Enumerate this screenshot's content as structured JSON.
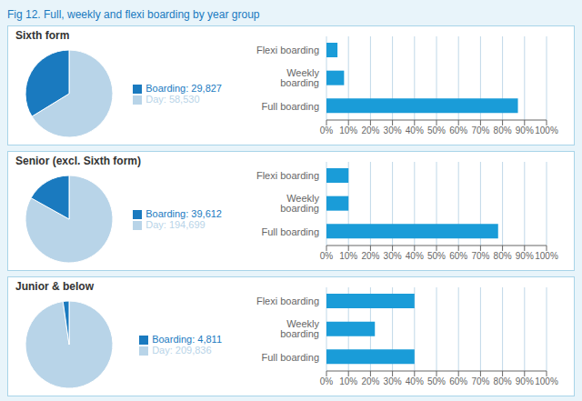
{
  "title": "Fig 12. Full, weekly and flexi boarding by year group",
  "chart_data": [
    {
      "type": "pie",
      "title": "Sixth form",
      "categories": [
        "Day: 58,530",
        "Boarding: 29,827"
      ],
      "values": [
        58530,
        29827
      ],
      "colors": [
        "#b8d4e8",
        "#1a7abf"
      ],
      "legend": "right"
    },
    {
      "type": "bar",
      "orientation": "horizontal",
      "categories": [
        "Flexi boarding",
        "Weekly boarding",
        "Full boarding"
      ],
      "values": [
        5,
        8,
        87
      ],
      "color": "#1a9cd8",
      "xlim": [
        0,
        100
      ],
      "xticks": [
        {
          "value": 0,
          "label": "0%"
        },
        {
          "value": 10,
          "label": "10%"
        },
        {
          "value": 20,
          "label": "20%"
        },
        {
          "value": 30,
          "label": "30%"
        },
        {
          "value": 40,
          "label": "40%"
        },
        {
          "value": 50,
          "label": "50%"
        },
        {
          "value": 60,
          "label": "60%"
        },
        {
          "value": 70,
          "label": "70%"
        },
        {
          "value": 80,
          "label": "80%"
        },
        {
          "value": 90,
          "label": "90%"
        },
        {
          "value": 100,
          "label": "100%"
        }
      ],
      "grid": true
    },
    {
      "type": "pie",
      "title": "Senior (excl. Sixth form)",
      "categories": [
        "Day: 194,699",
        "Boarding: 39,612"
      ],
      "values": [
        194699,
        39612
      ],
      "colors": [
        "#b8d4e8",
        "#1a7abf"
      ],
      "legend": "right"
    },
    {
      "type": "bar",
      "orientation": "horizontal",
      "categories": [
        "Flexi boarding",
        "Weekly boarding",
        "Full boarding"
      ],
      "values": [
        10,
        10,
        78
      ],
      "color": "#1a9cd8",
      "xlim": [
        0,
        100
      ],
      "xticks": [
        {
          "value": 0,
          "label": "0%"
        },
        {
          "value": 10,
          "label": "10%"
        },
        {
          "value": 20,
          "label": "20%"
        },
        {
          "value": 30,
          "label": "30%"
        },
        {
          "value": 40,
          "label": "40%"
        },
        {
          "value": 50,
          "label": "50%"
        },
        {
          "value": 60,
          "label": "60%"
        },
        {
          "value": 70,
          "label": "70%"
        },
        {
          "value": 80,
          "label": "80%"
        },
        {
          "value": 90,
          "label": "90%"
        },
        {
          "value": 100,
          "label": "100%"
        }
      ],
      "grid": true
    },
    {
      "type": "pie",
      "title": "Junior & below",
      "categories": [
        "Day: 209,836",
        "Boarding: 4,811"
      ],
      "values": [
        209836,
        4811
      ],
      "colors": [
        "#b8d4e8",
        "#1a7abf"
      ],
      "legend": "right"
    },
    {
      "type": "bar",
      "orientation": "horizontal",
      "categories": [
        "Flexi boarding",
        "Weekly boarding",
        "Full boarding"
      ],
      "values": [
        40,
        22,
        40
      ],
      "color": "#1a9cd8",
      "xlim": [
        0,
        100
      ],
      "xticks": [
        {
          "value": 0,
          "label": "0%"
        },
        {
          "value": 10,
          "label": "10%"
        },
        {
          "value": 20,
          "label": "20%"
        },
        {
          "value": 30,
          "label": "30%"
        },
        {
          "value": 40,
          "label": "40%"
        },
        {
          "value": 50,
          "label": "50%"
        },
        {
          "value": 60,
          "label": "60%"
        },
        {
          "value": 70,
          "label": "70%"
        },
        {
          "value": 80,
          "label": "80%"
        },
        {
          "value": 90,
          "label": "90%"
        },
        {
          "value": 100,
          "label": "100%"
        }
      ],
      "grid": true
    }
  ]
}
